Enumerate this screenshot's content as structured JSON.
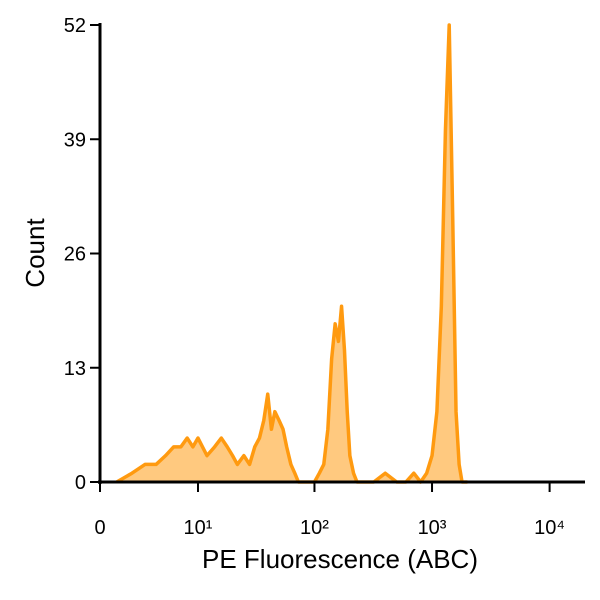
{
  "chart_data": {
    "type": "area",
    "x_label": "PE Fluorescence (ABC)",
    "y_label": "Count",
    "x": [
      1,
      2,
      3,
      4,
      5,
      6,
      7,
      8,
      9,
      10,
      12,
      14,
      16,
      18,
      20,
      22,
      25,
      28,
      31,
      34,
      37,
      40,
      43,
      46,
      50,
      54,
      58,
      63,
      68,
      73,
      80,
      90,
      100,
      110,
      120,
      130,
      140,
      150,
      160,
      170,
      180,
      190,
      200,
      215,
      230,
      250,
      280,
      320,
      400,
      500,
      600,
      700,
      800,
      900,
      1000,
      1100,
      1200,
      1300,
      1400,
      1500,
      1600,
      1700,
      1800,
      2000
    ],
    "values": [
      0,
      1,
      2,
      2,
      3,
      4,
      4,
      5,
      4,
      5,
      3,
      4,
      5,
      4,
      3,
      2,
      3,
      2,
      4,
      5,
      7,
      10,
      6,
      8,
      7,
      6,
      4,
      2,
      1,
      0,
      0,
      0,
      0,
      1,
      2,
      6,
      14,
      18,
      16,
      20,
      15,
      8,
      3,
      1,
      0,
      0,
      0,
      0,
      1,
      0,
      0,
      1,
      0,
      1,
      3,
      8,
      20,
      40,
      52,
      30,
      8,
      2,
      0,
      0
    ],
    "color": "#ff9a10",
    "fill": "#ffc97f",
    "xscale": "biexponential",
    "xlim": [
      0,
      20000
    ],
    "xticks": [
      0,
      {
        "value": 10,
        "label": "10¹"
      },
      {
        "value": 100,
        "label": "10²"
      },
      {
        "value": 1000,
        "label": "10³"
      },
      {
        "value": 10000,
        "label": "10⁴"
      }
    ],
    "ylim": [
      0,
      52
    ],
    "yticks": [
      0,
      13,
      26,
      39,
      52
    ]
  }
}
